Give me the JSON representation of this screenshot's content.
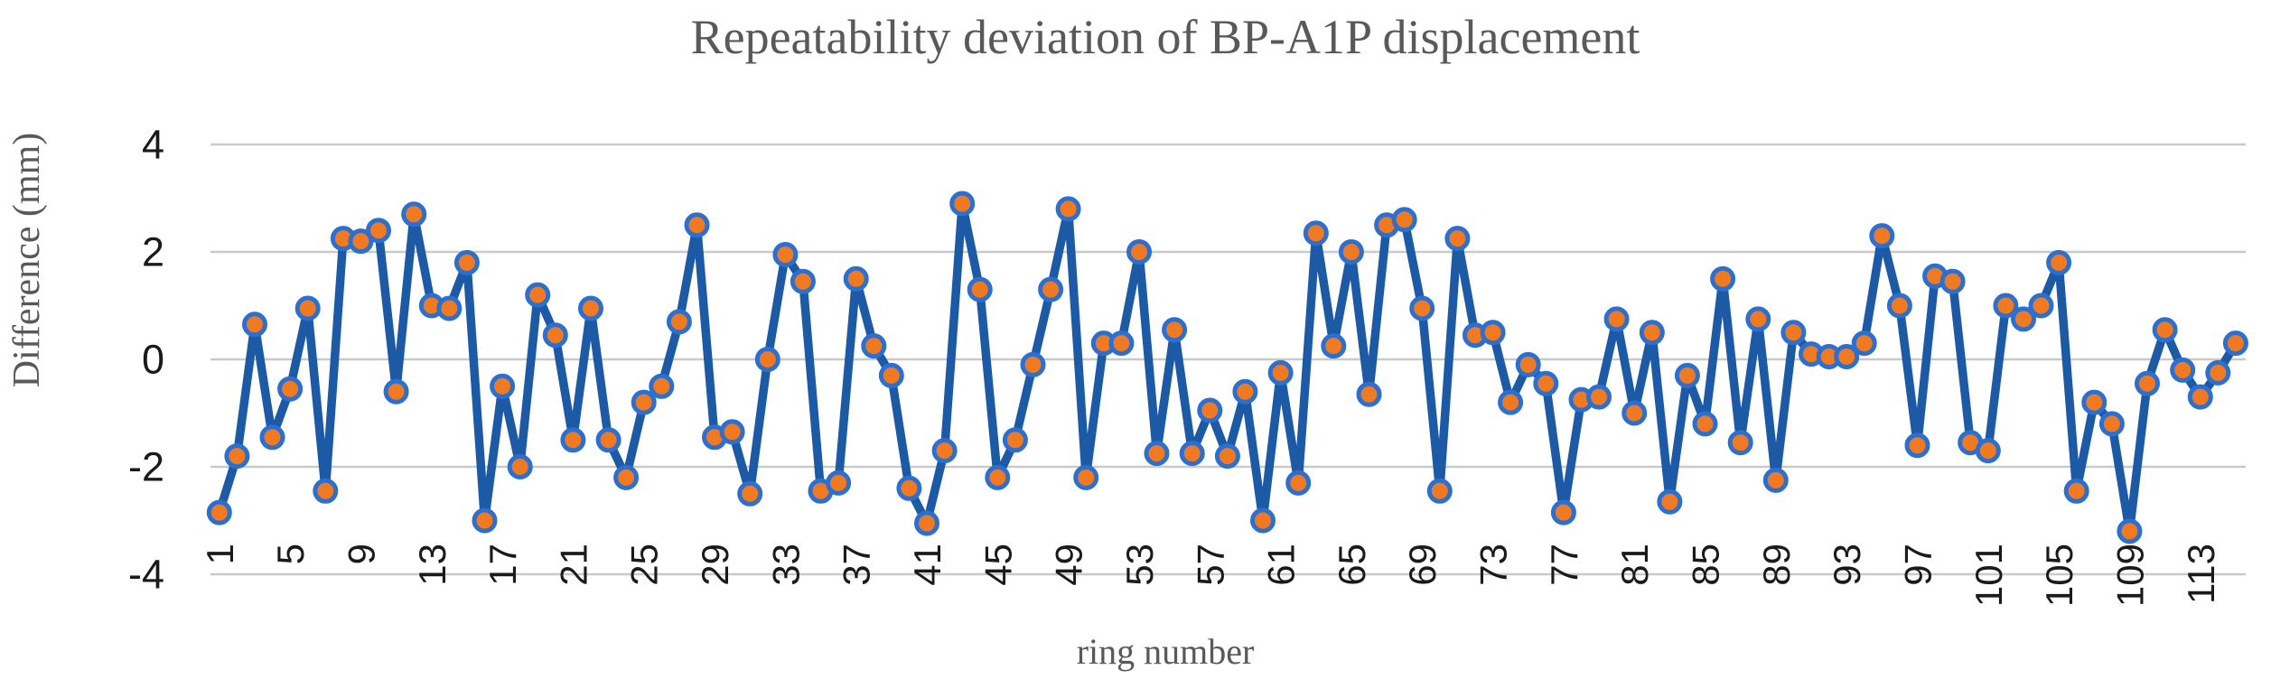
{
  "chart_data": {
    "type": "line",
    "title": "Repeatability deviation of BP-A1P displacement",
    "xlabel": "ring number",
    "ylabel": "Difference (mm)",
    "ylim": [
      -4,
      4
    ],
    "grid": "horizontal-only",
    "legend": "none",
    "yticks": [
      {
        "value": 4,
        "label": "4"
      },
      {
        "value": 2,
        "label": "2"
      },
      {
        "value": 0,
        "label": "0"
      },
      {
        "value": -2,
        "label": "-2"
      },
      {
        "value": -4,
        "label": "-4"
      }
    ],
    "xticks": [
      1,
      5,
      9,
      13,
      17,
      21,
      25,
      29,
      33,
      37,
      41,
      45,
      49,
      53,
      57,
      61,
      65,
      69,
      73,
      77,
      81,
      85,
      89,
      93,
      97,
      101,
      105,
      109,
      113
    ],
    "x_start": 1,
    "x_count": 115,
    "series": [
      {
        "name": "BP-A1P repeatability deviation",
        "values": [
          -2.85,
          -1.8,
          0.65,
          -1.45,
          -0.55,
          0.95,
          -2.45,
          2.25,
          2.2,
          2.4,
          -0.6,
          2.7,
          1.0,
          0.95,
          1.8,
          -3.0,
          -0.5,
          -2.0,
          1.2,
          0.45,
          -1.5,
          0.95,
          -1.5,
          -2.2,
          -0.8,
          -0.5,
          0.7,
          2.5,
          -1.45,
          -1.35,
          -2.5,
          0.0,
          1.95,
          1.45,
          -2.45,
          -2.3,
          1.5,
          0.25,
          -0.3,
          -2.4,
          -3.05,
          -1.7,
          2.9,
          1.3,
          -2.2,
          -1.5,
          -0.1,
          1.3,
          2.8,
          -2.2,
          0.3,
          0.3,
          2.0,
          -1.75,
          0.55,
          -1.75,
          -0.95,
          -1.8,
          -0.6,
          -3.0,
          -0.25,
          -2.3,
          2.35,
          0.25,
          2.0,
          -0.65,
          2.5,
          2.6,
          0.95,
          -2.45,
          2.25,
          0.45,
          0.5,
          -0.8,
          -0.1,
          -0.45,
          -2.85,
          -0.75,
          -0.7,
          0.75,
          -1.0,
          0.5,
          -2.65,
          -0.3,
          -1.2,
          1.5,
          -1.55,
          0.75,
          -2.25,
          0.5,
          0.1,
          0.05,
          0.05,
          0.3,
          2.3,
          1.0,
          -1.6,
          1.55,
          1.45,
          -1.55,
          -1.7,
          1.0,
          0.75,
          1.0,
          1.8,
          -2.45,
          -0.8,
          -1.2,
          -3.2,
          -0.45,
          0.55,
          -0.2,
          -0.7,
          -0.25,
          0.3
        ]
      }
    ],
    "colors": {
      "line": "#1c5aa6",
      "marker_fill": "#f07a22",
      "marker_border": "#2b6fd0",
      "gridline": "#c9c9c9",
      "title_text": "#595959",
      "tick_text": "#1a1a1a",
      "background": "#ffffff"
    }
  }
}
